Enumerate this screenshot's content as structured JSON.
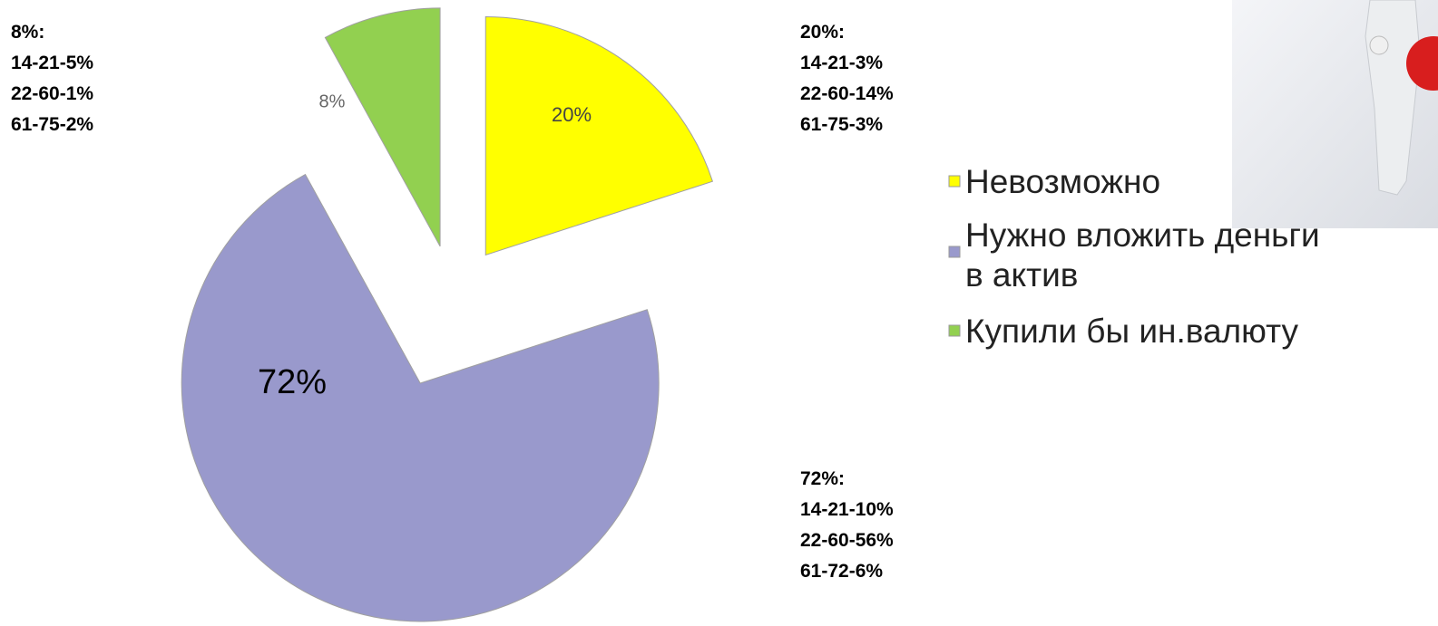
{
  "chart_data": {
    "type": "pie",
    "categories": [
      "Невозможно",
      "Нужно вложить деньги в актив",
      "Купили бы ин.валюту"
    ],
    "values": [
      20,
      72,
      8
    ],
    "value_labels": [
      "20%",
      "72%",
      "8%"
    ],
    "colors": [
      "#ffff00",
      "#9999cc",
      "#92d050"
    ],
    "legend": "right",
    "annotations": [
      {
        "lines": [
          "8%:",
          "14-21-5%",
          "22-60-1%",
          "61-75-2%"
        ]
      },
      {
        "lines": [
          "20%:",
          "14-21-3%",
          "22-60-14%",
          "61-75-3%"
        ]
      },
      {
        "lines": [
          "72%:",
          "14-21-10%",
          "22-60-56%",
          "61-72-6%"
        ]
      }
    ]
  }
}
